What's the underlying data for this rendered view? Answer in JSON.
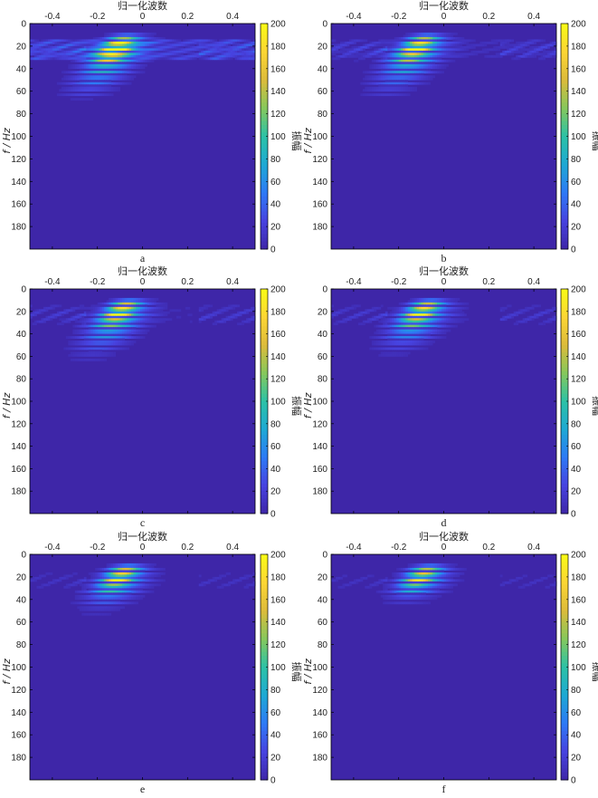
{
  "colors": {
    "colormap": [
      "#3e26a8",
      "#4743e0",
      "#2d7af6",
      "#1ea9d4",
      "#2cc2a6",
      "#86c85c",
      "#ddbb3a",
      "#fcd634",
      "#f9fb15"
    ],
    "frame": "#000000"
  },
  "chart_data": [
    {
      "type": "heatmap",
      "panel": "a",
      "title": "归一化波数",
      "xlabel": "归一化波数",
      "ylabel": "f / Hz",
      "colorbar_label": "振幅",
      "xlim": [
        -0.5,
        0.5
      ],
      "ylim": [
        0,
        200
      ],
      "xticks": [
        -0.4,
        -0.2,
        0,
        0.2,
        0.4
      ],
      "xtick_labels": [
        "-0.4",
        "-0.2",
        "0",
        "0.2",
        "0.4"
      ],
      "yticks": [
        0,
        20,
        40,
        60,
        80,
        100,
        120,
        140,
        160,
        180
      ],
      "ytick_labels": [
        "0",
        "20",
        "40",
        "60",
        "80",
        "100",
        "120",
        "140",
        "160",
        "180"
      ],
      "clim": [
        0,
        200
      ],
      "cticks": [
        "0",
        "20",
        "40",
        "60",
        "80",
        "100",
        "120",
        "140",
        "160",
        "180",
        "200"
      ],
      "peak": {
        "k": -0.12,
        "f": 22,
        "amp": 200
      },
      "energy_f_range": [
        10,
        60
      ],
      "background_band_f": [
        14,
        32
      ],
      "background_band_amp": 28,
      "side_noise_amp": 20
    },
    {
      "type": "heatmap",
      "panel": "b",
      "title": "归一化波数",
      "xlabel": "归一化波数",
      "ylabel": "f / Hz",
      "colorbar_label": "振幅",
      "xlim": [
        -0.5,
        0.5
      ],
      "ylim": [
        0,
        200
      ],
      "xticks": [
        -0.4,
        -0.2,
        0,
        0.2,
        0.4
      ],
      "xtick_labels": [
        "-0.4",
        "-0.2",
        "0",
        "0.2",
        "0.4"
      ],
      "yticks": [
        0,
        20,
        40,
        60,
        80,
        100,
        120,
        140,
        160,
        180
      ],
      "ytick_labels": [
        "0",
        "20",
        "40",
        "60",
        "80",
        "100",
        "120",
        "140",
        "160",
        "180"
      ],
      "clim": [
        0,
        200
      ],
      "cticks": [
        "0",
        "20",
        "40",
        "60",
        "80",
        "100",
        "120",
        "140",
        "160",
        "180",
        "200"
      ],
      "peak": {
        "k": -0.12,
        "f": 21,
        "amp": 185
      },
      "energy_f_range": [
        10,
        58
      ],
      "background_band_f": [
        14,
        30
      ],
      "background_band_amp": 10,
      "side_noise_amp": 22
    },
    {
      "type": "heatmap",
      "panel": "c",
      "title": "归一化波数",
      "xlabel": "归一化波数",
      "ylabel": "f / Hz",
      "colorbar_label": "振幅",
      "xlim": [
        -0.5,
        0.5
      ],
      "ylim": [
        0,
        200
      ],
      "xticks": [
        -0.4,
        -0.2,
        0,
        0.2,
        0.4
      ],
      "xtick_labels": [
        "-0.4",
        "-0.2",
        "0",
        "0.2",
        "0.4"
      ],
      "yticks": [
        0,
        20,
        40,
        60,
        80,
        100,
        120,
        140,
        160,
        180
      ],
      "ytick_labels": [
        "0",
        "20",
        "40",
        "60",
        "80",
        "100",
        "120",
        "140",
        "160",
        "180"
      ],
      "clim": [
        0,
        200
      ],
      "cticks": [
        "0",
        "20",
        "40",
        "60",
        "80",
        "100",
        "120",
        "140",
        "160",
        "180",
        "200"
      ],
      "peak": {
        "k": -0.1,
        "f": 20,
        "amp": 180
      },
      "energy_f_range": [
        10,
        55
      ],
      "background_band_f": [
        14,
        30
      ],
      "background_band_amp": 6,
      "side_noise_amp": 18
    },
    {
      "type": "heatmap",
      "panel": "d",
      "title": "归一化波数",
      "xlabel": "归一化波数",
      "ylabel": "f / Hz",
      "colorbar_label": "振幅",
      "xlim": [
        -0.5,
        0.5
      ],
      "ylim": [
        0,
        200
      ],
      "xticks": [
        -0.4,
        -0.2,
        0,
        0.2,
        0.4
      ],
      "xtick_labels": [
        "-0.4",
        "-0.2",
        "0",
        "0.2",
        "0.4"
      ],
      "yticks": [
        0,
        20,
        40,
        60,
        80,
        100,
        120,
        140,
        160,
        180
      ],
      "ytick_labels": [
        "0",
        "20",
        "40",
        "60",
        "80",
        "100",
        "120",
        "140",
        "160",
        "180"
      ],
      "clim": [
        0,
        200
      ],
      "cticks": [
        "0",
        "20",
        "40",
        "60",
        "80",
        "100",
        "120",
        "140",
        "160",
        "180",
        "200"
      ],
      "peak": {
        "k": -0.1,
        "f": 20,
        "amp": 175
      },
      "energy_f_range": [
        10,
        52
      ],
      "background_band_f": [
        14,
        30
      ],
      "background_band_amp": 4,
      "side_noise_amp": 18
    },
    {
      "type": "heatmap",
      "panel": "e",
      "title": "归一化波数",
      "xlabel": "归一化波数",
      "ylabel": "f / Hz",
      "colorbar_label": "振幅",
      "xlim": [
        -0.5,
        0.5
      ],
      "ylim": [
        0,
        200
      ],
      "xticks": [
        -0.4,
        -0.2,
        0,
        0.2,
        0.4
      ],
      "xtick_labels": [
        "-0.4",
        "-0.2",
        "0",
        "0.2",
        "0.4"
      ],
      "yticks": [
        0,
        20,
        40,
        60,
        80,
        100,
        120,
        140,
        160,
        180
      ],
      "ytick_labels": [
        "0",
        "20",
        "40",
        "60",
        "80",
        "100",
        "120",
        "140",
        "160",
        "180"
      ],
      "clim": [
        0,
        200
      ],
      "cticks": [
        "0",
        "20",
        "40",
        "60",
        "80",
        "100",
        "120",
        "140",
        "160",
        "180",
        "200"
      ],
      "peak": {
        "k": -0.1,
        "f": 19,
        "amp": 165
      },
      "energy_f_range": [
        10,
        46
      ],
      "background_band_f": [
        14,
        28
      ],
      "background_band_amp": 2,
      "side_noise_amp": 12
    },
    {
      "type": "heatmap",
      "panel": "f",
      "title": "归一化波数",
      "xlabel": "归一化波数",
      "ylabel": "f / Hz",
      "colorbar_label": "振幅",
      "xlim": [
        -0.5,
        0.5
      ],
      "ylim": [
        0,
        200
      ],
      "xticks": [
        -0.4,
        -0.2,
        0,
        0.2,
        0.4
      ],
      "xtick_labels": [
        "-0.4",
        "-0.2",
        "0",
        "0.2",
        "0.4"
      ],
      "yticks": [
        0,
        20,
        40,
        60,
        80,
        100,
        120,
        140,
        160,
        180
      ],
      "ytick_labels": [
        "0",
        "20",
        "40",
        "60",
        "80",
        "100",
        "120",
        "140",
        "160",
        "180"
      ],
      "clim": [
        0,
        200
      ],
      "cticks": [
        "0",
        "20",
        "40",
        "60",
        "80",
        "100",
        "120",
        "140",
        "160",
        "180",
        "200"
      ],
      "peak": {
        "k": -0.1,
        "f": 19,
        "amp": 150
      },
      "energy_f_range": [
        10,
        40
      ],
      "background_band_f": [
        14,
        28
      ],
      "background_band_amp": 0,
      "side_noise_amp": 12
    }
  ]
}
